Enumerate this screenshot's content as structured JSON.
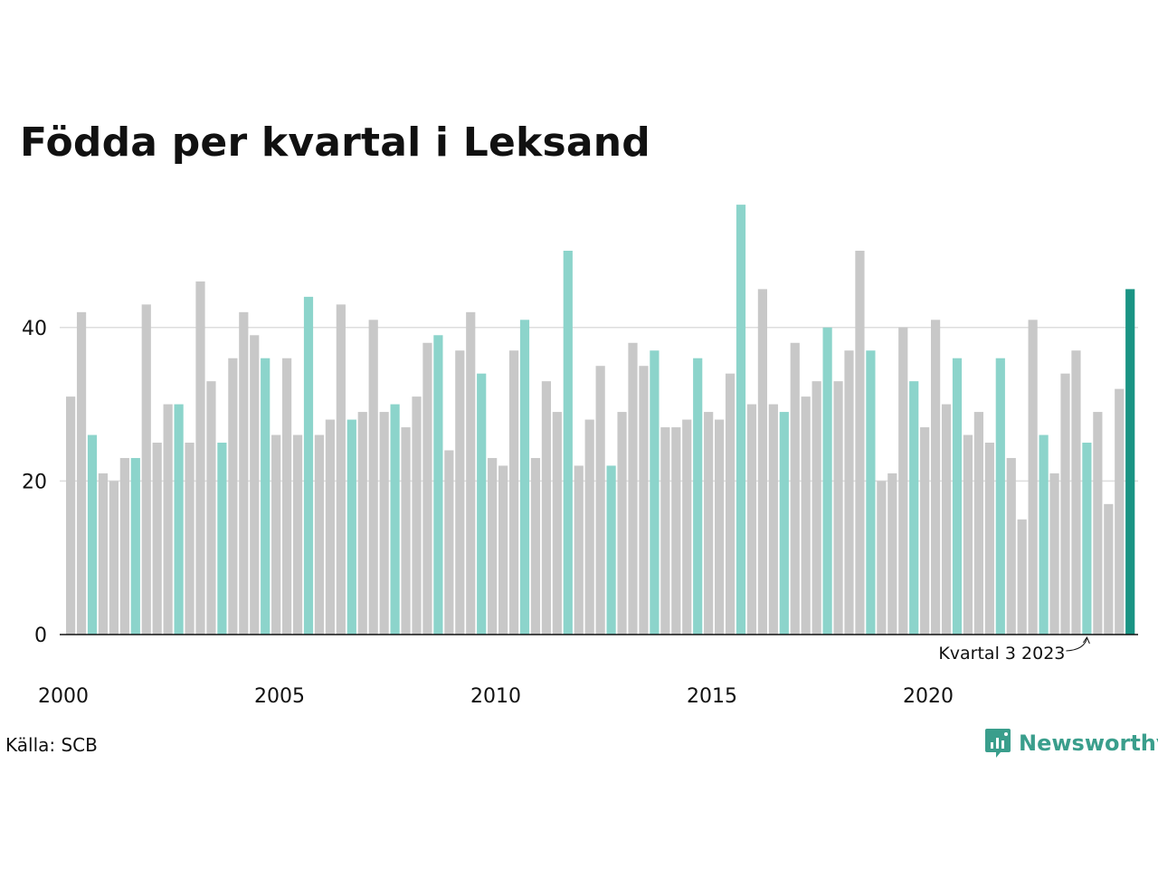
{
  "title": "Födda per kvartal i Leksand",
  "source": "Källa: SCB",
  "brand": {
    "name": "Newsworthy",
    "icon": "newsworthy-logo-icon"
  },
  "colors": {
    "bar": "#c8c8c8",
    "highlight": "#8cd4cb",
    "latest": "#1a9484",
    "grid": "#dddddd",
    "axis": "#111111"
  },
  "chart_data": {
    "type": "bar",
    "title": "Födda per kvartal i Leksand",
    "xlabel": "",
    "ylabel": "",
    "ylim": [
      0,
      56
    ],
    "yticks": [
      0,
      20,
      40
    ],
    "xtick_labels": [
      "2000",
      "2005",
      "2010",
      "2015",
      "2020"
    ],
    "grid": true,
    "annotation": {
      "text": "Kvartal 3 2023",
      "target": "2023 Q3"
    },
    "legend": "none",
    "series": [
      {
        "quarters": [
          "2000 Q1",
          "2000 Q2",
          "2000 Q3",
          "2000 Q4",
          "2001 Q1",
          "2001 Q2",
          "2001 Q3",
          "2001 Q4",
          "2002 Q1",
          "2002 Q2",
          "2002 Q3",
          "2002 Q4",
          "2003 Q1",
          "2003 Q2",
          "2003 Q3",
          "2003 Q4",
          "2004 Q1",
          "2004 Q2",
          "2004 Q3",
          "2004 Q4",
          "2005 Q1",
          "2005 Q2",
          "2005 Q3",
          "2005 Q4",
          "2006 Q1",
          "2006 Q2",
          "2006 Q3",
          "2006 Q4",
          "2007 Q1",
          "2007 Q2",
          "2007 Q3",
          "2007 Q4",
          "2008 Q1",
          "2008 Q2",
          "2008 Q3",
          "2008 Q4",
          "2009 Q1",
          "2009 Q2",
          "2009 Q3",
          "2009 Q4",
          "2010 Q1",
          "2010 Q2",
          "2010 Q3",
          "2010 Q4",
          "2011 Q1",
          "2011 Q2",
          "2011 Q3",
          "2011 Q4",
          "2012 Q1",
          "2012 Q2",
          "2012 Q3",
          "2012 Q4",
          "2013 Q1",
          "2013 Q2",
          "2013 Q3",
          "2013 Q4",
          "2014 Q1",
          "2014 Q2",
          "2014 Q3",
          "2014 Q4",
          "2015 Q1",
          "2015 Q2",
          "2015 Q3",
          "2015 Q4",
          "2016 Q1",
          "2016 Q2",
          "2016 Q3",
          "2016 Q4",
          "2017 Q1",
          "2017 Q2",
          "2017 Q3",
          "2017 Q4",
          "2018 Q1",
          "2018 Q2",
          "2018 Q3",
          "2018 Q4",
          "2019 Q1",
          "2019 Q2",
          "2019 Q3",
          "2019 Q4",
          "2020 Q1",
          "2020 Q2",
          "2020 Q3",
          "2020 Q4",
          "2021 Q1",
          "2021 Q2",
          "2021 Q3",
          "2021 Q4",
          "2022 Q1",
          "2022 Q2",
          "2022 Q3",
          "2022 Q4",
          "2023 Q1",
          "2023 Q2",
          "2023 Q3",
          "2023 Q4",
          "2024 Q1",
          "2024 Q2",
          "2024 Q3"
        ],
        "values": [
          31,
          42,
          26,
          21,
          20,
          23,
          23,
          43,
          25,
          30,
          30,
          25,
          46,
          33,
          25,
          36,
          42,
          39,
          36,
          26,
          36,
          26,
          44,
          26,
          28,
          43,
          28,
          29,
          41,
          29,
          30,
          27,
          31,
          38,
          39,
          24,
          37,
          42,
          34,
          23,
          22,
          37,
          41,
          23,
          33,
          29,
          50,
          22,
          28,
          35,
          22,
          29,
          38,
          35,
          37,
          27,
          27,
          28,
          36,
          29,
          28,
          34,
          56,
          30,
          45,
          30,
          29,
          38,
          31,
          33,
          40,
          33,
          37,
          50,
          37,
          20,
          21,
          40,
          33,
          27,
          41,
          30,
          36,
          26,
          29,
          25,
          36,
          23,
          15,
          41,
          26,
          21,
          34,
          37,
          25,
          29,
          17,
          32,
          45
        ]
      }
    ]
  }
}
